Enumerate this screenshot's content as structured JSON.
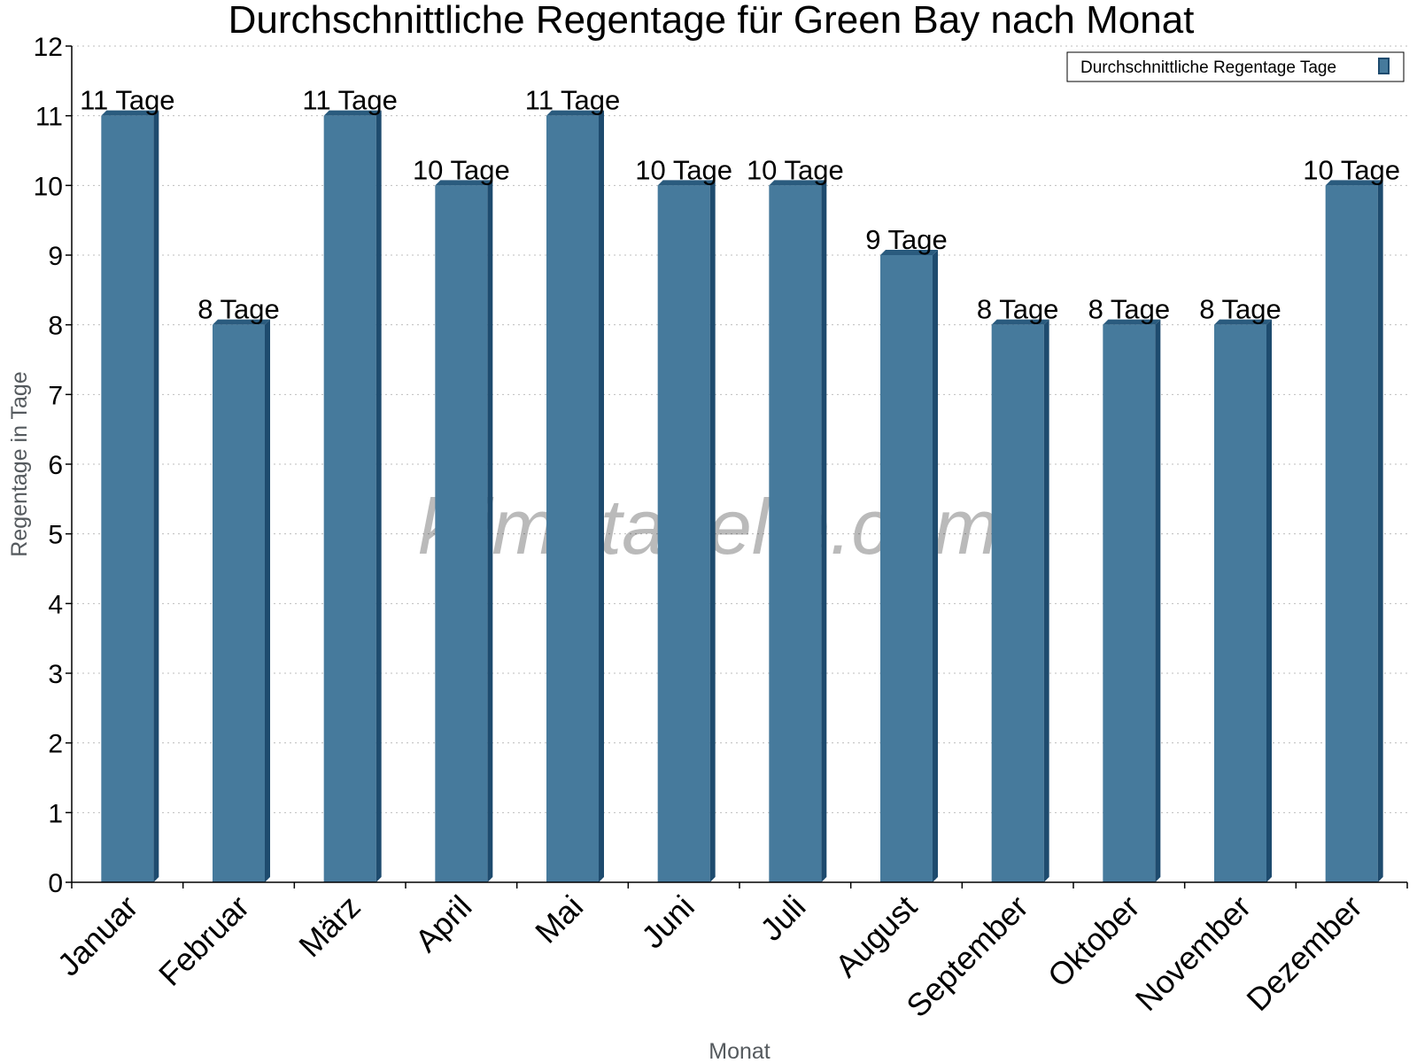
{
  "chart_data": {
    "type": "bar",
    "title": "Durchschnittliche Regentage für Green Bay nach Monat",
    "xlabel": "Monat",
    "ylabel": "Regentage in Tage",
    "ylim": [
      0,
      12
    ],
    "yticks": [
      0,
      1,
      2,
      3,
      4,
      5,
      6,
      7,
      8,
      9,
      10,
      11,
      12
    ],
    "grid": true,
    "legend_position": "top-right",
    "categories": [
      "Januar",
      "Februar",
      "März",
      "April",
      "Mai",
      "Juni",
      "Juli",
      "August",
      "September",
      "Oktober",
      "November",
      "Dezember"
    ],
    "series": [
      {
        "name": "Durchschnittliche Regentage Tage",
        "values": [
          11,
          8,
          11,
          10,
          11,
          10,
          10,
          9,
          8,
          8,
          8,
          10
        ],
        "data_labels": [
          "11 Tage",
          "8 Tage",
          "11 Tage",
          "10 Tage",
          "11 Tage",
          "10 Tage",
          "10 Tage",
          "9 Tage",
          "8 Tage",
          "8 Tage",
          "8 Tage",
          "10 Tage"
        ]
      }
    ],
    "colors": {
      "bar": "#467a9c",
      "bar_side": "#1e4b6e",
      "bar_top": "#2a5b7e"
    },
    "watermark": "klimatabelle.com"
  }
}
